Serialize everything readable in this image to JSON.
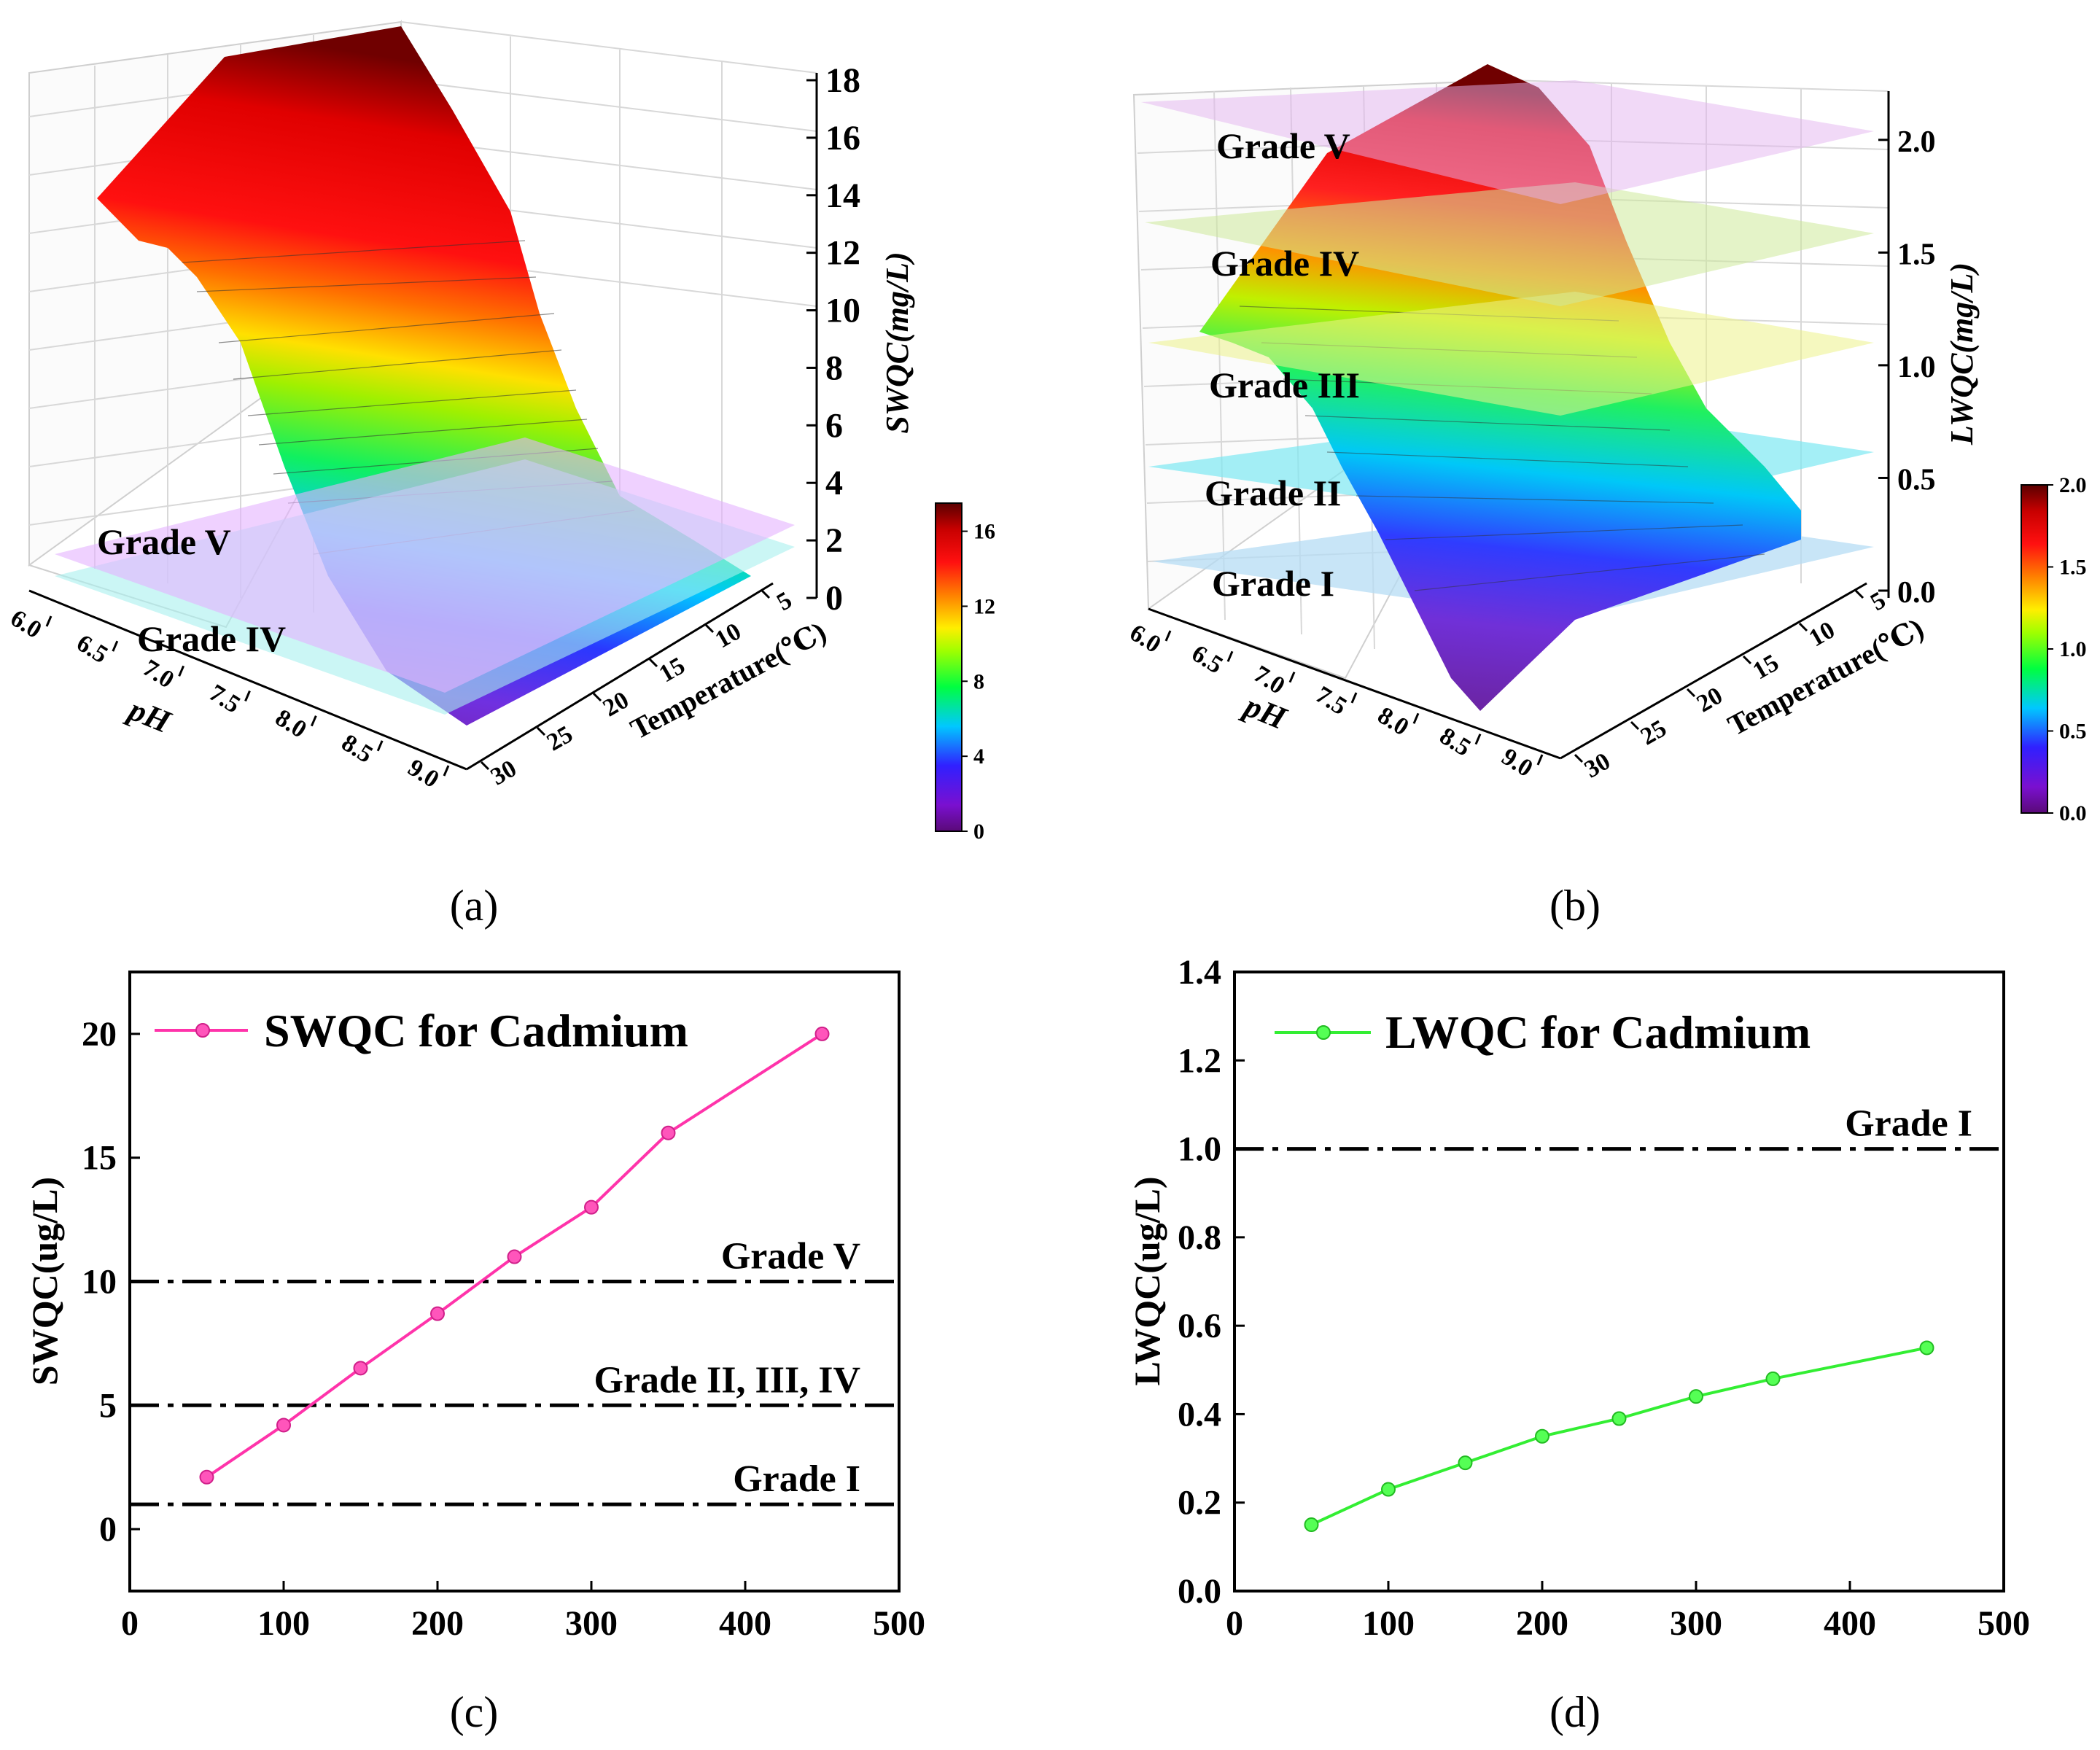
{
  "panels": {
    "a": {
      "caption": "(a)"
    },
    "b": {
      "caption": "(b)"
    },
    "c": {
      "caption": "(c)"
    },
    "d": {
      "caption": "(d)"
    }
  },
  "colors": {
    "swqc_line": "#ff33aa",
    "lwqc_line": "#33ee33",
    "threshold": "#000000"
  },
  "chart_data": [
    {
      "id": "a",
      "type": "surface3d",
      "zlabel": "SWQC(mg/L)",
      "xlabel": "pH",
      "ylabel": "Temperature(℃)",
      "x_ticks": [
        "6.0",
        "6.5",
        "7.0",
        "7.5",
        "8.0",
        "8.5",
        "9.0"
      ],
      "y_ticks": [
        "5",
        "10",
        "15",
        "20",
        "25",
        "30"
      ],
      "z_ticks": [
        "0",
        "2",
        "4",
        "6",
        "8",
        "10",
        "12",
        "14",
        "16",
        "18"
      ],
      "zlim": [
        0,
        18
      ],
      "planes": [
        {
          "label": "Grade V",
          "z": 1.0,
          "color": "#e4b3ff"
        },
        {
          "label": "Grade IV",
          "z": 0.5,
          "color": "#a8f0ee"
        }
      ],
      "colorbar": {
        "ticks": [
          "0",
          "4",
          "8",
          "12",
          "16"
        ],
        "range": [
          0,
          17.5
        ]
      }
    },
    {
      "id": "b",
      "type": "surface3d",
      "zlabel": "LWQC(mg/L)",
      "xlabel": "pH",
      "ylabel": "Temperature(℃)",
      "x_ticks": [
        "6.0",
        "6.5",
        "7.0",
        "7.5",
        "8.0",
        "8.5",
        "9.0"
      ],
      "y_ticks": [
        "5",
        "10",
        "15",
        "20",
        "25",
        "30"
      ],
      "z_ticks": [
        "0.0",
        "0.5",
        "1.0",
        "1.5",
        "2.0"
      ],
      "zlim": [
        0,
        2.2
      ],
      "planes": [
        {
          "label": "Grade V",
          "z": 2.0,
          "color": "#e4b3f0"
        },
        {
          "label": "Grade IV",
          "z": 1.5,
          "color": "#cde99a"
        },
        {
          "label": "Grade III",
          "z": 1.0,
          "color": "#ecf28a"
        },
        {
          "label": "Grade II",
          "z": 0.5,
          "color": "#7ee8f2"
        },
        {
          "label": "Grade I",
          "z": 0.05,
          "color": "#b6dcf4"
        }
      ],
      "colorbar": {
        "ticks": [
          "0.0",
          "0.5",
          "1.0",
          "1.5",
          "2.0"
        ],
        "range": [
          0,
          2.0
        ]
      }
    },
    {
      "id": "c",
      "type": "line",
      "ylabel": "SWQC(ug/L)",
      "xlabel": "",
      "xlim": [
        0,
        500
      ],
      "ylim": [
        -2.5,
        22.5
      ],
      "x_ticks": [
        0,
        100,
        200,
        300,
        400,
        500
      ],
      "y_ticks": [
        0,
        5,
        10,
        15,
        20
      ],
      "series": [
        {
          "name": "SWQC for Cadmium",
          "x": [
            50,
            100,
            150,
            200,
            250,
            300,
            350,
            450
          ],
          "y": [
            2.1,
            4.2,
            6.5,
            8.7,
            11.0,
            13.0,
            16.0,
            20.0
          ]
        }
      ],
      "thresholds": [
        {
          "label": "Grade V",
          "y": 10
        },
        {
          "label": "Grade II, III, IV",
          "y": 5
        },
        {
          "label": "Grade I",
          "y": 1
        }
      ]
    },
    {
      "id": "d",
      "type": "line",
      "ylabel": "LWQC(ug/L)",
      "xlabel": "",
      "xlim": [
        0,
        500
      ],
      "ylim": [
        0,
        1.4
      ],
      "x_ticks": [
        0,
        100,
        200,
        300,
        400,
        500
      ],
      "y_ticks": [
        "0.0",
        "0.2",
        "0.4",
        "0.6",
        "0.8",
        "1.0",
        "1.2",
        "1.4"
      ],
      "series": [
        {
          "name": "LWQC for Cadmium",
          "x": [
            50,
            100,
            150,
            200,
            250,
            300,
            350,
            450
          ],
          "y": [
            0.15,
            0.23,
            0.29,
            0.35,
            0.39,
            0.44,
            0.48,
            0.55
          ]
        }
      ],
      "thresholds": [
        {
          "label": "Grade I",
          "y": 1.0
        }
      ]
    }
  ]
}
